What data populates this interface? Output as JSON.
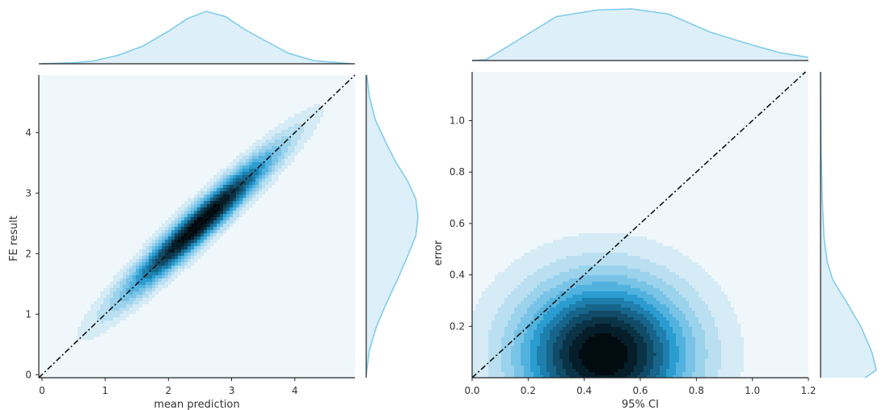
{
  "colors": {
    "background": "#eff7fb",
    "marginal_fill": "#ddeff8",
    "marginal_line": "#7ccbea",
    "axis": "#222222",
    "identity_line": "#111111",
    "contour_levels": [
      "#d5ebf6",
      "#b9dff1",
      "#9bd2ec",
      "#79c3e6",
      "#52b2de",
      "#2a9cd0",
      "#1e7fad",
      "#17658a",
      "#114b67",
      "#0b3346",
      "#061e2a",
      "#020b10"
    ]
  },
  "chart_data": [
    {
      "type": "kde-joint",
      "xlabel": "mean prediction",
      "ylabel": "FE result",
      "xlim": [
        -0.05,
        4.95
      ],
      "ylim": [
        -0.05,
        4.95
      ],
      "xticks": [
        0,
        1,
        2,
        3,
        4
      ],
      "yticks": [
        0,
        1,
        2,
        3,
        4
      ],
      "xtick_labels": [
        "0",
        "1",
        "2",
        "3",
        "4"
      ],
      "ytick_labels": [
        "0",
        "1",
        "2",
        "3",
        "4"
      ],
      "identity_line": true,
      "density": {
        "center": [
          2.5,
          2.5
        ],
        "major_dir": [
          1,
          1
        ],
        "major_sd": 1.15,
        "minor_sd": 0.17,
        "levels": 12
      },
      "marginal_x": {
        "x": [
          0.0,
          0.5,
          0.8,
          1.2,
          1.6,
          2.0,
          2.3,
          2.6,
          2.9,
          3.2,
          3.5,
          3.9,
          4.3,
          4.9
        ],
        "density": [
          0.0,
          0.02,
          0.05,
          0.16,
          0.34,
          0.62,
          0.86,
          1.0,
          0.9,
          0.66,
          0.46,
          0.2,
          0.06,
          0.0
        ]
      },
      "marginal_y": {
        "y": [
          0.0,
          0.4,
          0.8,
          1.2,
          1.6,
          2.0,
          2.3,
          2.6,
          2.9,
          3.2,
          3.5,
          3.8,
          4.2,
          4.6,
          4.95
        ],
        "density": [
          0.0,
          0.06,
          0.2,
          0.4,
          0.62,
          0.82,
          0.96,
          1.0,
          0.96,
          0.8,
          0.58,
          0.4,
          0.18,
          0.06,
          0.01
        ]
      }
    },
    {
      "type": "kde-joint",
      "xlabel": "95% CI",
      "ylabel": "error",
      "xlim": [
        0.0,
        1.2
      ],
      "ylim": [
        0.0,
        1.19
      ],
      "xticks": [
        0.0,
        0.2,
        0.4,
        0.6,
        0.8,
        1.0,
        1.2
      ],
      "yticks": [
        0.2,
        0.4,
        0.6,
        0.8,
        1.0
      ],
      "xtick_labels": [
        "0.0",
        "0.2",
        "0.4",
        "0.6",
        "0.8",
        "1.0",
        "1.2"
      ],
      "ytick_labels": [
        "0.2",
        "0.4",
        "0.6",
        "0.8",
        "1.0"
      ],
      "identity_line": true,
      "density": {
        "center": [
          0.47,
          0.09
        ],
        "sx": 0.21,
        "sy": 0.2,
        "levels": 12
      },
      "marginal_x": {
        "x": [
          0.0,
          0.05,
          0.15,
          0.3,
          0.45,
          0.57,
          0.7,
          0.85,
          1.0,
          1.1,
          1.2
        ],
        "density": [
          0.0,
          0.02,
          0.35,
          0.85,
          0.98,
          1.0,
          0.9,
          0.55,
          0.3,
          0.15,
          0.06
        ]
      },
      "marginal_y": {
        "y": [
          0.0,
          0.03,
          0.1,
          0.2,
          0.3,
          0.38,
          0.45,
          0.55,
          0.7,
          0.9,
          1.19
        ],
        "density": [
          0.8,
          1.0,
          0.92,
          0.72,
          0.45,
          0.22,
          0.12,
          0.06,
          0.03,
          0.01,
          0.0
        ]
      }
    }
  ]
}
